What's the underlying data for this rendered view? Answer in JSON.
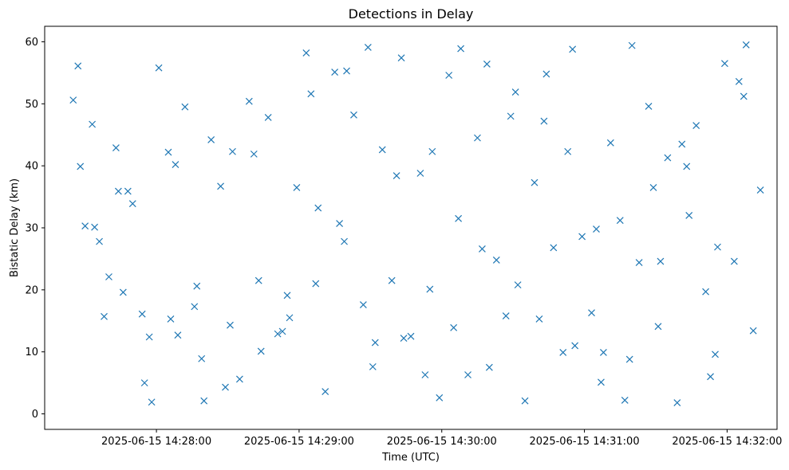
{
  "chart_data": {
    "type": "scatter",
    "title": "Detections in Delay",
    "xlabel": "Time (UTC)",
    "ylabel": "Bistatic Delay (km)",
    "marker": "x",
    "color": "#1f77b4",
    "grid": false,
    "x_type": "time",
    "xlim": [
      "2025-06-15 14:27:13",
      "2025-06-15 14:32:21"
    ],
    "ylim": [
      -2.5,
      62.5
    ],
    "x_ticks": [
      "2025-06-15 14:28:00",
      "2025-06-15 14:29:00",
      "2025-06-15 14:30:00",
      "2025-06-15 14:31:00",
      "2025-06-15 14:32:00"
    ],
    "y_ticks": [
      "0",
      "10",
      "20",
      "30",
      "40",
      "50",
      "60"
    ],
    "series": [
      {
        "x": [
          "2025-06-15 14:27:25",
          "2025-06-15 14:27:27",
          "2025-06-15 14:27:30",
          "2025-06-15 14:27:33",
          "2025-06-15 14:27:36",
          "2025-06-15 14:27:40",
          "2025-06-15 14:27:43",
          "2025-06-15 14:27:46",
          "2025-06-15 14:27:50",
          "2025-06-15 14:27:54",
          "2025-06-15 14:27:57",
          "2025-06-15 14:28:01",
          "2025-06-15 14:28:05",
          "2025-06-15 14:28:08",
          "2025-06-15 14:28:12",
          "2025-06-15 14:28:16",
          "2025-06-15 14:28:19",
          "2025-06-15 14:28:23",
          "2025-06-15 14:28:27",
          "2025-06-15 14:28:31",
          "2025-06-15 14:28:35",
          "2025-06-15 14:28:39",
          "2025-06-15 14:28:43",
          "2025-06-15 14:28:47",
          "2025-06-15 14:28:51",
          "2025-06-15 14:28:55",
          "2025-06-15 14:28:59",
          "2025-06-15 14:29:03",
          "2025-06-15 14:29:07",
          "2025-06-15 14:29:11",
          "2025-06-15 14:29:15",
          "2025-06-15 14:29:19",
          "2025-06-15 14:29:23",
          "2025-06-15 14:29:27",
          "2025-06-15 14:29:31",
          "2025-06-15 14:29:35",
          "2025-06-15 14:29:39",
          "2025-06-15 14:29:43",
          "2025-06-15 14:29:47",
          "2025-06-15 14:29:51",
          "2025-06-15 14:29:55",
          "2025-06-15 14:29:59",
          "2025-06-15 14:30:03",
          "2025-06-15 14:30:07",
          "2025-06-15 14:30:11",
          "2025-06-15 14:30:15",
          "2025-06-15 14:30:19",
          "2025-06-15 14:30:23",
          "2025-06-15 14:30:27",
          "2025-06-15 14:30:31",
          "2025-06-15 14:30:35",
          "2025-06-15 14:30:39",
          "2025-06-15 14:30:43",
          "2025-06-15 14:30:47",
          "2025-06-15 14:30:51",
          "2025-06-15 14:30:55",
          "2025-06-15 14:30:59",
          "2025-06-15 14:31:03",
          "2025-06-15 14:31:07",
          "2025-06-15 14:31:11",
          "2025-06-15 14:31:15",
          "2025-06-15 14:31:19",
          "2025-06-15 14:31:23",
          "2025-06-15 14:31:27",
          "2025-06-15 14:31:31",
          "2025-06-15 14:31:35",
          "2025-06-15 14:31:39",
          "2025-06-15 14:31:43",
          "2025-06-15 14:31:47",
          "2025-06-15 14:31:51",
          "2025-06-15 14:31:55",
          "2025-06-15 14:31:59",
          "2025-06-15 14:32:03",
          "2025-06-15 14:32:07",
          "2025-06-15 14:32:11",
          "2025-06-15 14:32:14",
          "2025-06-15 14:27:28",
          "2025-06-15 14:27:38",
          "2025-06-15 14:27:48",
          "2025-06-15 14:27:58",
          "2025-06-15 14:28:09",
          "2025-06-15 14:28:20",
          "2025-06-15 14:28:32",
          "2025-06-15 14:28:44",
          "2025-06-15 14:28:56",
          "2025-06-15 14:29:08",
          "2025-06-15 14:29:20",
          "2025-06-15 14:29:32",
          "2025-06-15 14:29:44",
          "2025-06-15 14:29:56",
          "2025-06-15 14:30:08",
          "2025-06-15 14:30:20",
          "2025-06-15 14:30:32",
          "2025-06-15 14:30:44",
          "2025-06-15 14:30:56",
          "2025-06-15 14:31:08",
          "2025-06-15 14:31:20",
          "2025-06-15 14:31:32",
          "2025-06-15 14:31:44",
          "2025-06-15 14:31:56",
          "2025-06-15 14:32:08",
          "2025-06-15 14:27:34",
          "2025-06-15 14:27:44",
          "2025-06-15 14:27:55",
          "2025-06-15 14:28:06",
          "2025-06-15 14:28:17",
          "2025-06-15 14:28:29",
          "2025-06-15 14:28:41",
          "2025-06-15 14:28:53",
          "2025-06-15 14:29:05",
          "2025-06-15 14:29:17",
          "2025-06-15 14:29:29",
          "2025-06-15 14:29:41",
          "2025-06-15 14:29:53",
          "2025-06-15 14:30:05",
          "2025-06-15 14:30:17",
          "2025-06-15 14:30:29",
          "2025-06-15 14:30:41",
          "2025-06-15 14:30:53",
          "2025-06-15 14:31:05",
          "2025-06-15 14:31:17",
          "2025-06-15 14:31:29",
          "2025-06-15 14:31:41",
          "2025-06-15 14:31:53",
          "2025-06-15 14:32:05"
        ],
        "y": [
          50.6,
          56.1,
          30.3,
          46.7,
          27.8,
          22.1,
          42.9,
          19.6,
          33.9,
          16.1,
          12.4,
          55.8,
          42.2,
          40.2,
          49.5,
          17.3,
          8.9,
          44.2,
          36.7,
          14.3,
          5.6,
          50.4,
          21.5,
          47.8,
          12.9,
          19.1,
          36.5,
          58.2,
          21.0,
          3.6,
          55.1,
          27.8,
          48.2,
          17.6,
          7.6,
          42.6,
          21.5,
          57.4,
          12.5,
          38.8,
          20.1,
          2.6,
          54.6,
          31.5,
          6.3,
          44.5,
          56.4,
          24.8,
          15.8,
          51.9,
          2.1,
          37.3,
          47.2,
          26.8,
          9.9,
          58.8,
          28.6,
          16.3,
          5.1,
          43.7,
          31.2,
          8.8,
          24.4,
          49.6,
          14.1,
          41.3,
          1.8,
          39.9,
          46.5,
          19.7,
          9.6,
          56.5,
          24.6,
          51.2,
          13.4,
          36.1,
          39.9,
          15.7,
          35.9,
          1.9,
          12.7,
          2.1,
          42.3,
          10.1,
          15.5,
          33.2,
          55.3,
          11.5,
          12.2,
          42.3,
          58.9,
          7.5,
          20.8,
          54.8,
          11.0,
          9.9,
          59.4,
          24.6,
          32.0,
          26.9,
          59.5,
          30.1,
          35.9,
          5.0,
          15.3,
          20.6,
          4.3,
          41.9,
          13.3,
          51.6,
          30.7,
          59.1,
          38.4,
          6.3,
          13.9,
          26.6,
          48.0,
          15.3,
          42.3,
          29.8,
          2.2,
          36.5,
          43.5,
          6.0,
          53.6
        ]
      }
    ]
  }
}
